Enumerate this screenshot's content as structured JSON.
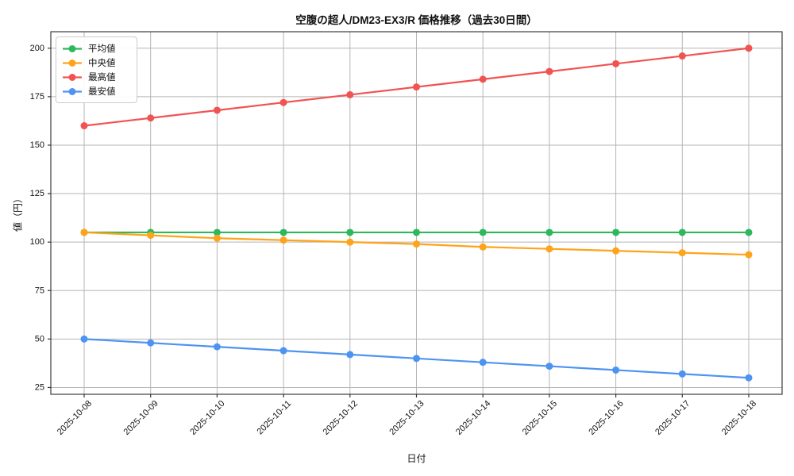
{
  "chart_data": {
    "type": "line",
    "title": "空腹の超人/DM23-EX3/R 価格推移（過去30日間）",
    "xlabel": "日付",
    "ylabel": "値（円）",
    "x": [
      "2025-10-08",
      "2025-10-09",
      "2025-10-10",
      "2025-10-11",
      "2025-10-12",
      "2025-10-13",
      "2025-10-14",
      "2025-10-15",
      "2025-10-16",
      "2025-10-17",
      "2025-10-18"
    ],
    "series": [
      {
        "name": "平均値",
        "color": "#2cb85c",
        "values": [
          105,
          105,
          105,
          105,
          105,
          105,
          105,
          105,
          105,
          105,
          105
        ]
      },
      {
        "name": "中央値",
        "color": "#ffa31a",
        "values": [
          105,
          103.5,
          102,
          101,
          100,
          99,
          97.5,
          96.5,
          95.5,
          94.5,
          93.5
        ]
      },
      {
        "name": "最高値",
        "color": "#f15353",
        "values": [
          160,
          164,
          168,
          172,
          176,
          180,
          184,
          188,
          192,
          196,
          200
        ]
      },
      {
        "name": "最安値",
        "color": "#4d94f2",
        "values": [
          50,
          48,
          46,
          44,
          42,
          40,
          38,
          36,
          34,
          32,
          30
        ]
      }
    ],
    "yticks": [
      25,
      50,
      75,
      100,
      125,
      150,
      175,
      200
    ],
    "ylim": [
      21.5,
      208.5
    ],
    "grid": true,
    "legend_position": "upper left"
  }
}
